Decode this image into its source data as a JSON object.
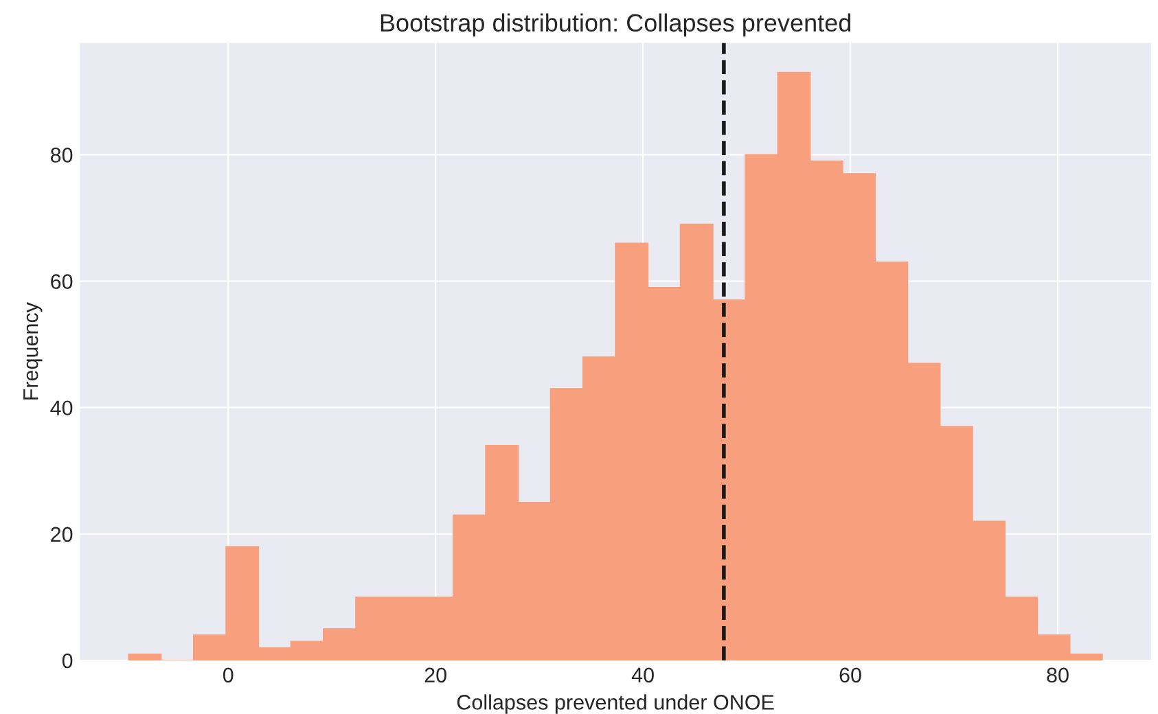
{
  "chart_data": {
    "type": "histogram",
    "title": "Bootstrap distribution: Collapses prevented",
    "xlabel": "Collapses prevented under ONOE",
    "ylabel": "Frequency",
    "bins": [
      -9.6,
      -6.47,
      -3.34,
      -0.21,
      2.92,
      6.05,
      9.18,
      12.31,
      15.44,
      18.57,
      21.7,
      24.83,
      27.96,
      31.09,
      34.22,
      37.35,
      40.48,
      43.61,
      46.74,
      49.87,
      53.0,
      56.13,
      59.26,
      62.39,
      65.52,
      68.65,
      71.78,
      74.91,
      78.04,
      81.17,
      84.3
    ],
    "values": [
      1,
      0,
      4,
      18,
      2,
      3,
      5,
      10,
      10,
      10,
      23,
      34,
      25,
      43,
      48,
      66,
      59,
      69,
      57,
      80,
      93,
      79,
      77,
      63,
      47,
      37,
      22,
      10,
      4,
      1
    ],
    "color": "#f8a07e",
    "xlim": [
      -14.3,
      89
    ],
    "ylim": [
      0,
      97.7
    ],
    "xticks": [
      0,
      20,
      40,
      60,
      80
    ],
    "yticks": [
      0,
      20,
      40,
      60,
      80
    ],
    "grid": true,
    "ref_lines": [
      {
        "axis": "x",
        "value": 47.8,
        "color": "#1a1a1a",
        "line_style": "dashed"
      }
    ]
  }
}
